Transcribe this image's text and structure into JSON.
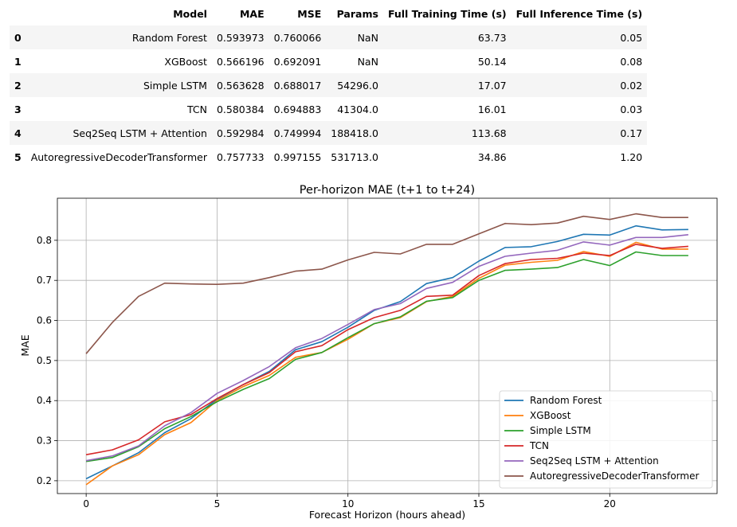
{
  "table": {
    "columns": [
      "",
      "Model",
      "MAE",
      "MSE",
      "Params",
      "Full Training Time (s)",
      "Full Inference Time (s)"
    ],
    "rows": [
      [
        "0",
        "Random Forest",
        "0.593973",
        "0.760066",
        "NaN",
        "63.73",
        "0.05"
      ],
      [
        "1",
        "XGBoost",
        "0.566196",
        "0.692091",
        "NaN",
        "50.14",
        "0.08"
      ],
      [
        "2",
        "Simple LSTM",
        "0.563628",
        "0.688017",
        "54296.0",
        "17.07",
        "0.02"
      ],
      [
        "3",
        "TCN",
        "0.580384",
        "0.694883",
        "41304.0",
        "16.01",
        "0.03"
      ],
      [
        "4",
        "Seq2Seq LSTM + Attention",
        "0.592984",
        "0.749994",
        "188418.0",
        "113.68",
        "0.17"
      ],
      [
        "5",
        "AutoregressiveDecoderTransformer",
        "0.757733",
        "0.997155",
        "531713.0",
        "34.86",
        "1.20"
      ]
    ]
  },
  "chart_data": {
    "type": "line",
    "title": "Per-horizon MAE (t+1 to t+24)",
    "xlabel": "Forecast Horizon (hours ahead)",
    "ylabel": "MAE",
    "x": [
      0,
      1,
      2,
      3,
      4,
      5,
      6,
      7,
      8,
      9,
      10,
      11,
      12,
      13,
      14,
      15,
      16,
      17,
      18,
      19,
      20,
      21,
      22,
      23
    ],
    "xlim": [
      -1.1,
      24.1
    ],
    "ylim": [
      0.168,
      0.905
    ],
    "xticks": [
      0,
      5,
      10,
      15,
      20
    ],
    "yticks": [
      0.2,
      0.3,
      0.4,
      0.5,
      0.6,
      0.7,
      0.8
    ],
    "grid": true,
    "legend_position": "lower-right",
    "series": [
      {
        "name": "Random Forest",
        "color": "#1f77b4",
        "values": [
          0.205,
          0.237,
          0.27,
          0.32,
          0.355,
          0.403,
          0.44,
          0.473,
          0.527,
          0.547,
          0.583,
          0.625,
          0.647,
          0.692,
          0.707,
          0.748,
          0.782,
          0.784,
          0.797,
          0.815,
          0.813,
          0.836,
          0.826,
          0.827
        ]
      },
      {
        "name": "XGBoost",
        "color": "#ff7f0e",
        "values": [
          0.19,
          0.237,
          0.265,
          0.315,
          0.345,
          0.4,
          0.435,
          0.463,
          0.508,
          0.52,
          0.553,
          0.592,
          0.607,
          0.647,
          0.66,
          0.705,
          0.738,
          0.745,
          0.75,
          0.772,
          0.76,
          0.795,
          0.778,
          0.778
        ]
      },
      {
        "name": "Simple LSTM",
        "color": "#2ca02c",
        "values": [
          0.248,
          0.258,
          0.285,
          0.33,
          0.36,
          0.397,
          0.428,
          0.455,
          0.503,
          0.52,
          0.557,
          0.592,
          0.609,
          0.648,
          0.657,
          0.7,
          0.725,
          0.728,
          0.732,
          0.752,
          0.737,
          0.771,
          0.762,
          0.762
        ]
      },
      {
        "name": "TCN",
        "color": "#d62728",
        "values": [
          0.265,
          0.277,
          0.302,
          0.347,
          0.365,
          0.405,
          0.44,
          0.47,
          0.522,
          0.537,
          0.577,
          0.607,
          0.625,
          0.66,
          0.663,
          0.712,
          0.742,
          0.752,
          0.755,
          0.768,
          0.762,
          0.79,
          0.78,
          0.785
        ]
      },
      {
        "name": "Seq2Seq LSTM + Attention",
        "color": "#9467bd",
        "values": [
          0.25,
          0.262,
          0.287,
          0.337,
          0.37,
          0.418,
          0.45,
          0.485,
          0.532,
          0.555,
          0.59,
          0.627,
          0.642,
          0.68,
          0.695,
          0.735,
          0.76,
          0.768,
          0.775,
          0.796,
          0.788,
          0.807,
          0.807,
          0.814
        ]
      },
      {
        "name": "AutoregressiveDecoderTransformer",
        "color": "#8c564b",
        "values": [
          0.517,
          0.595,
          0.66,
          0.693,
          0.691,
          0.69,
          0.693,
          0.707,
          0.723,
          0.728,
          0.751,
          0.77,
          0.766,
          0.79,
          0.79,
          0.816,
          0.842,
          0.839,
          0.843,
          0.86,
          0.852,
          0.866,
          0.857,
          0.857
        ]
      }
    ]
  }
}
